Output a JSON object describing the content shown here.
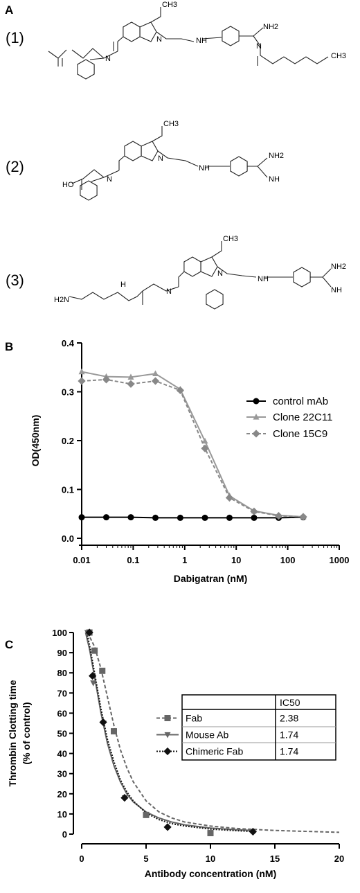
{
  "panels": {
    "a": "A",
    "b": "B",
    "c": "C"
  },
  "structures": {
    "labels": [
      "(1)",
      "(2)",
      "(3)"
    ],
    "atoms": {
      "ch3": "CH3",
      "nh2": "NH2",
      "nh": "NH",
      "h2n": "H2N",
      "ho": "HO",
      "n": "N",
      "h": "H",
      "o": "O"
    }
  },
  "chart_data": [
    {
      "type": "line",
      "panel": "B",
      "title": "",
      "xlabel": "Dabigatran (nM)",
      "ylabel": "OD(450nm)",
      "x_scale": "log",
      "xlim": [
        0.01,
        1000
      ],
      "ylim": [
        0.0,
        0.4
      ],
      "x_ticks": [
        "0.01",
        "0.1",
        "1",
        "10",
        "100",
        "1000"
      ],
      "y_ticks": [
        "0.0",
        "0.1",
        "0.2",
        "0.3",
        "0.4"
      ],
      "grid": false,
      "legend_position": "right",
      "x": [
        0.01,
        0.03,
        0.09,
        0.27,
        0.82,
        2.47,
        7.4,
        22.2,
        66.7,
        200
      ],
      "series": [
        {
          "name": "control mAb",
          "color": "#000000",
          "marker": "circle",
          "dash": "solid",
          "values": [
            0.043,
            0.043,
            0.043,
            0.042,
            0.042,
            0.042,
            0.042,
            0.042,
            0.042,
            0.043
          ]
        },
        {
          "name": "Clone 22C11",
          "color": "#999999",
          "marker": "triangle",
          "dash": "solid",
          "values": [
            0.341,
            0.331,
            0.33,
            0.337,
            0.305,
            0.199,
            0.087,
            0.056,
            0.047,
            0.044
          ]
        },
        {
          "name": "Clone 15C9",
          "color": "#888888",
          "marker": "diamond",
          "dash": "dashed",
          "values": [
            0.322,
            0.325,
            0.316,
            0.322,
            0.303,
            0.184,
            0.083,
            0.055,
            0.046,
            0.044
          ]
        }
      ]
    },
    {
      "type": "scatter",
      "panel": "C",
      "title": "",
      "xlabel": "Antibody concentration (nM)",
      "ylabel": [
        "Thrombin Clotting time",
        "(% of control)"
      ],
      "xlim": [
        0,
        20
      ],
      "ylim": [
        0,
        100
      ],
      "x_ticks": [
        "0",
        "5",
        "10",
        "15",
        "20"
      ],
      "y_ticks": [
        "0",
        "10",
        "20",
        "30",
        "40",
        "50",
        "60",
        "70",
        "80",
        "90",
        "100"
      ],
      "grid": false,
      "legend_position": "right",
      "table": {
        "header": [
          "",
          "IC50"
        ]
      },
      "series": [
        {
          "name": "Fab",
          "ic50": "2.38",
          "color": "#666666",
          "marker": "square",
          "dash": "dashed",
          "points": [
            [
              0.6,
              100
            ],
            [
              1.0,
              91
            ],
            [
              1.6,
              81
            ],
            [
              2.5,
              51
            ],
            [
              5.0,
              9.5
            ],
            [
              10.0,
              0.5
            ]
          ],
          "curve": [
            [
              0.45,
              100
            ],
            [
              1,
              93
            ],
            [
              1.5,
              82
            ],
            [
              2,
              68
            ],
            [
              2.5,
              54
            ],
            [
              3,
              42
            ],
            [
              3.5,
              33
            ],
            [
              4,
              26
            ],
            [
              5,
              16.5
            ],
            [
              6,
              11
            ],
            [
              7,
              8
            ],
            [
              8,
              6
            ],
            [
              10,
              4
            ],
            [
              12,
              2.8
            ],
            [
              15,
              1.8
            ],
            [
              20,
              0.9
            ]
          ]
        },
        {
          "name": "Mouse Ab",
          "ic50": "1.74",
          "color": "#666666",
          "marker": "triangle-down",
          "dash": "solid",
          "points": [
            [
              0.45,
              100
            ],
            [
              0.9,
              75
            ],
            [
              1.7,
              55
            ],
            [
              3.35,
              18
            ]
          ],
          "curve": [
            [
              0.3,
              100
            ],
            [
              0.6,
              92
            ],
            [
              1,
              78
            ],
            [
              1.5,
              60
            ],
            [
              2,
              45
            ],
            [
              2.5,
              34
            ],
            [
              3,
              26
            ],
            [
              3.5,
              20
            ],
            [
              4,
              16
            ],
            [
              5,
              11
            ],
            [
              6,
              8
            ],
            [
              7,
              6
            ],
            [
              8,
              4.6
            ],
            [
              10,
              3
            ],
            [
              12,
              2.2
            ],
            [
              13.3,
              1.8
            ]
          ]
        },
        {
          "name": "Chimeric Fab",
          "ic50": "1.74",
          "color": "#111111",
          "marker": "diamond",
          "dash": "dotted",
          "points": [
            [
              0.6,
              100
            ],
            [
              0.84,
              78.5
            ],
            [
              1.67,
              55.5
            ],
            [
              3.33,
              18
            ],
            [
              6.67,
              3.5
            ],
            [
              13.3,
              1.2
            ]
          ],
          "curve": [
            [
              0.4,
              100
            ],
            [
              0.6,
              94
            ],
            [
              1,
              80
            ],
            [
              1.5,
              62
            ],
            [
              2,
              47
            ],
            [
              2.5,
              36
            ],
            [
              3,
              27
            ],
            [
              3.5,
              21
            ],
            [
              4,
              16.5
            ],
            [
              5,
              10.5
            ],
            [
              6,
              7.2
            ],
            [
              7,
              5.2
            ],
            [
              8,
              4
            ],
            [
              10,
              2.5
            ],
            [
              12,
              1.7
            ],
            [
              13.3,
              1.3
            ]
          ]
        }
      ]
    }
  ]
}
